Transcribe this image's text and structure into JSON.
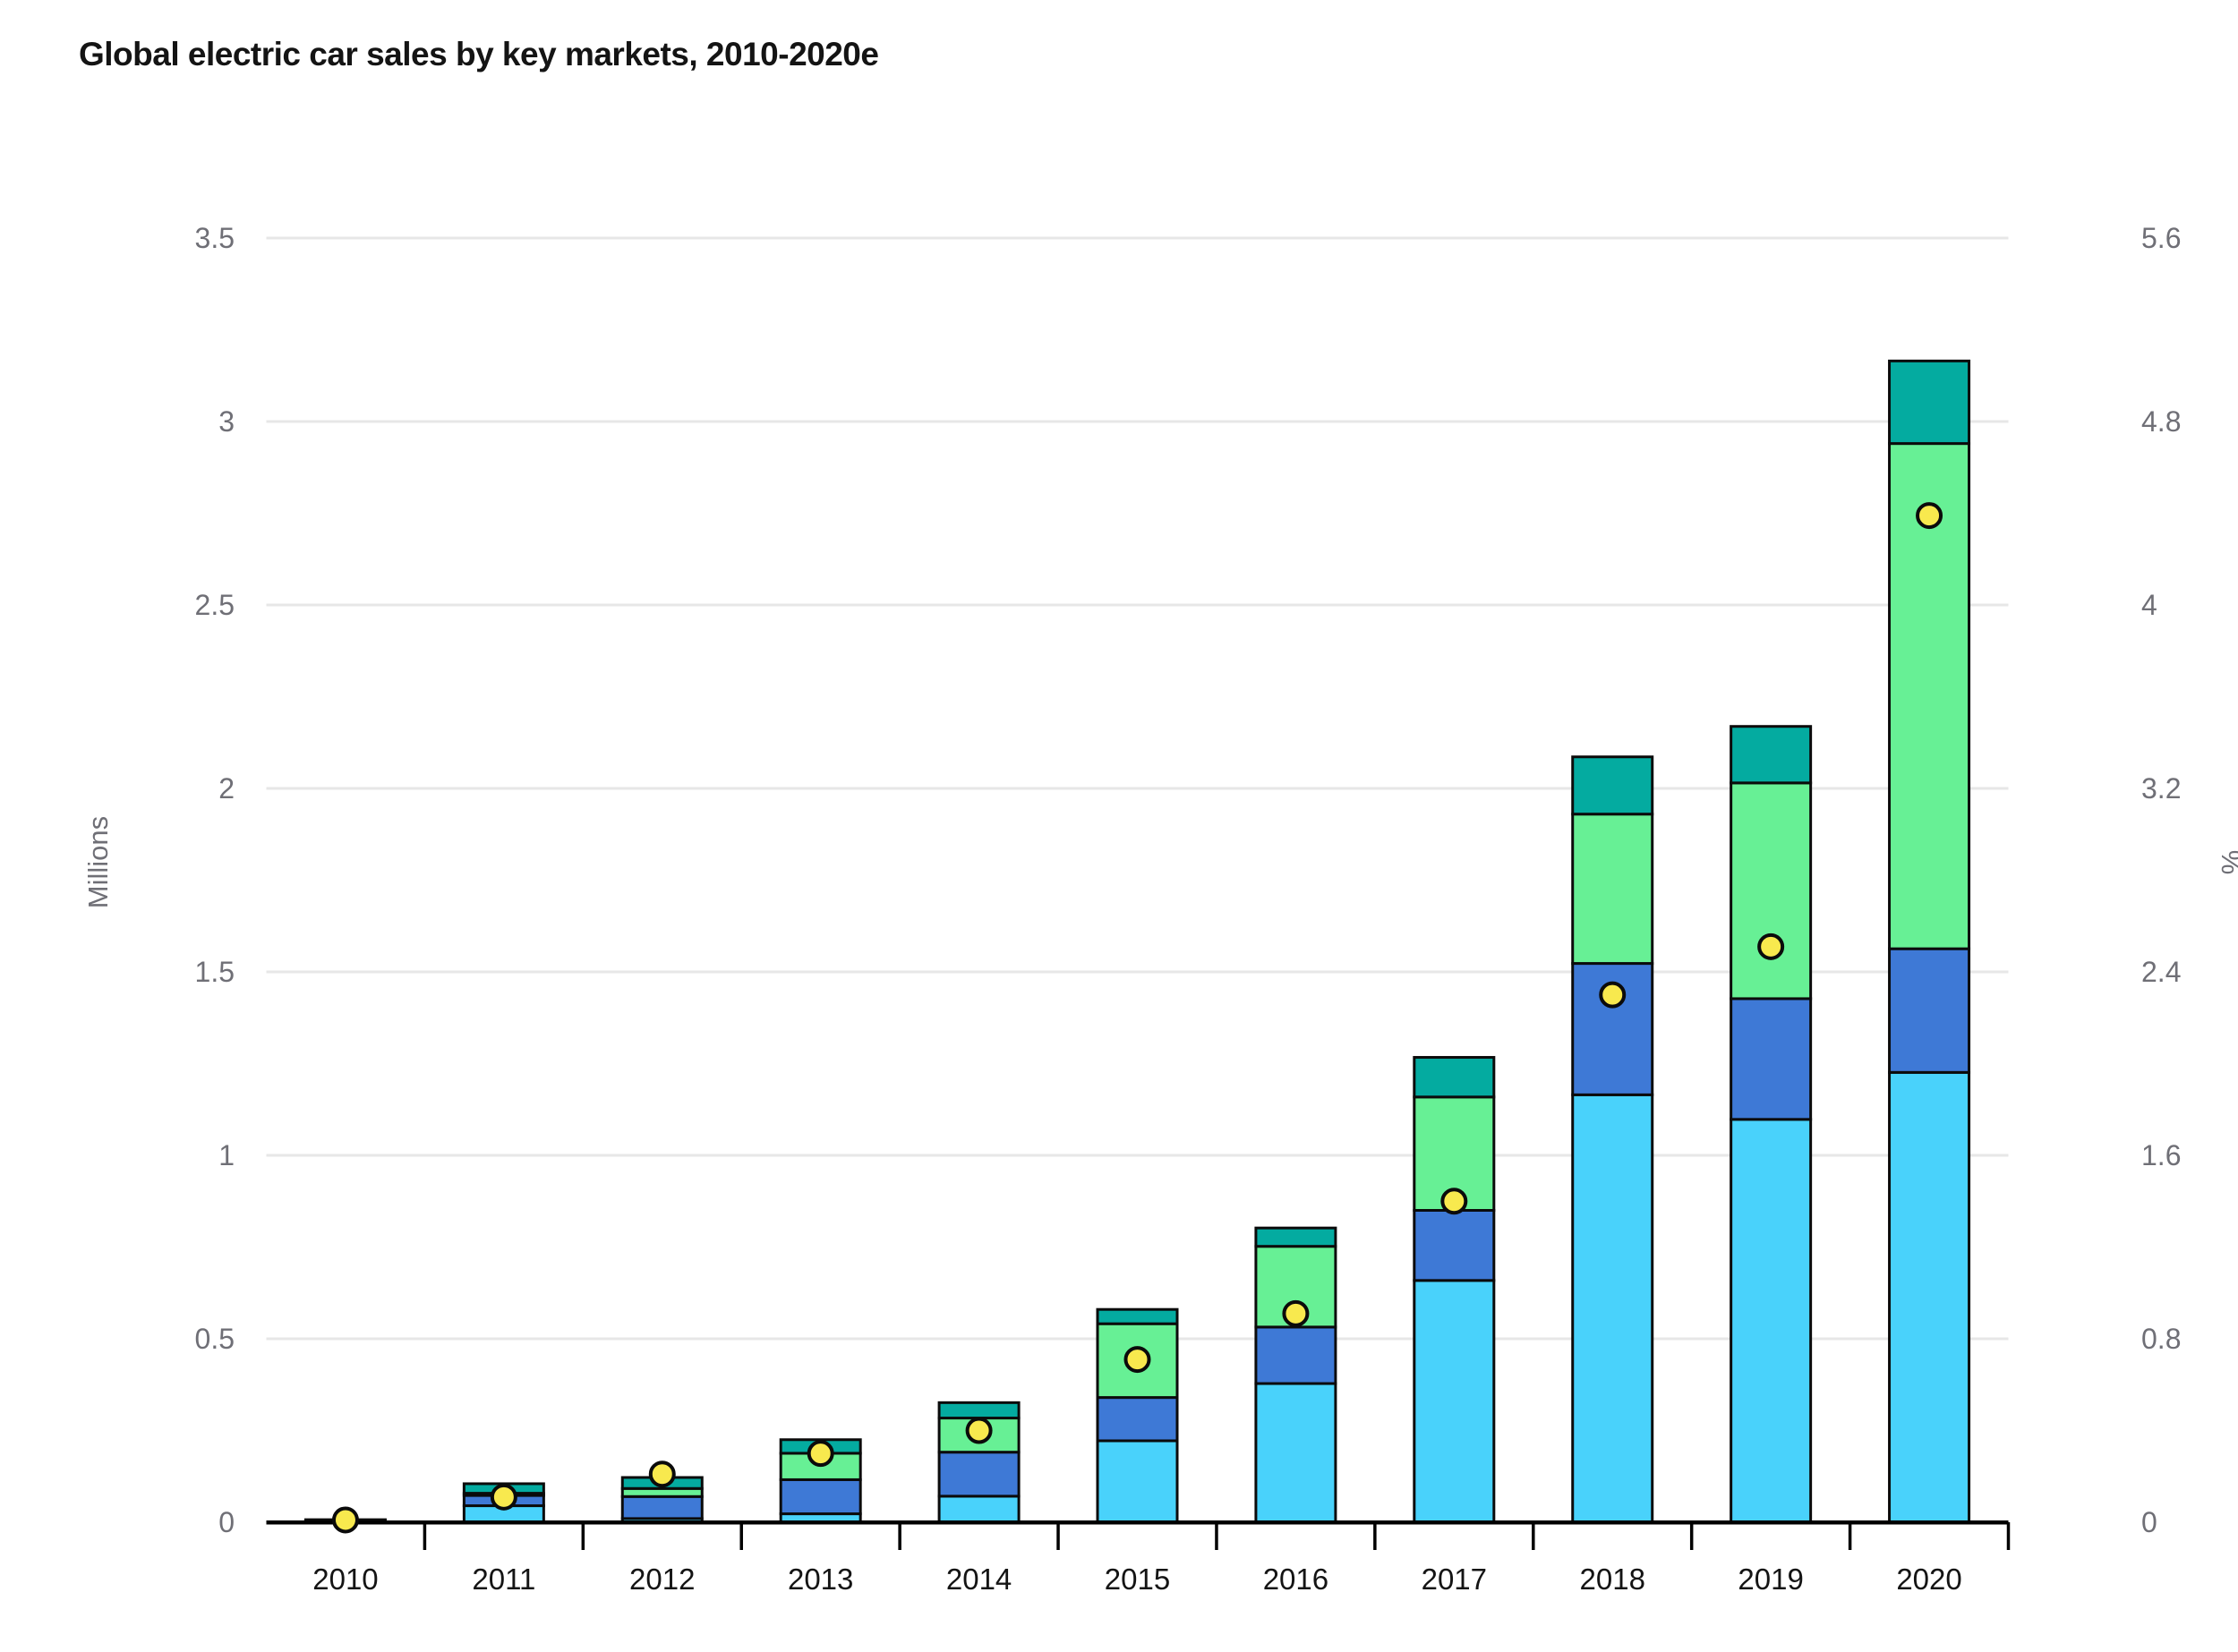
{
  "title": "Global electric car sales by key markets, 2010-2020e",
  "left_axis": {
    "label": "Millions",
    "ticks": [
      "0",
      "0.5",
      "1",
      "1.5",
      "2",
      "2.5",
      "3",
      "3.5"
    ],
    "min": 0,
    "max": 3.5
  },
  "right_axis": {
    "label": "%",
    "ticks": [
      "0",
      "0.8",
      "1.6",
      "2.4",
      "3.2",
      "4",
      "4.8",
      "5.6"
    ],
    "min": 0,
    "max": 5.6
  },
  "colors": {
    "light_blue": "#49D2FB",
    "blue": "#3E79D6",
    "green": "#67F095",
    "teal": "#04ABA0",
    "dot_yellow": "#F8E94E",
    "outline": "#0B0B0B",
    "gridline": "#E7E7E7",
    "axis_label_gray": "#6F6F76",
    "year_label": "#141414"
  },
  "chart_data": {
    "type": "bar",
    "stacked": true,
    "title": "Global electric car sales by key markets, 2010-2020e",
    "xlabel": "",
    "ylabel_left": "Millions",
    "ylabel_right": "%",
    "ylim_left": [
      0,
      3.5
    ],
    "ylim_right": [
      0,
      5.6
    ],
    "grid": true,
    "legend": "none",
    "categories": [
      "2010",
      "2011",
      "2012",
      "2013",
      "2014",
      "2015",
      "2016",
      "2017",
      "2018",
      "2019",
      "2020"
    ],
    "series": [
      {
        "name": "light-blue-segment",
        "color": "#49D2FB",
        "axis": "left",
        "unit": "millions",
        "values": [
          0.002,
          0.045,
          0.01,
          0.023,
          0.071,
          0.222,
          0.378,
          0.659,
          1.165,
          1.098,
          1.226
        ]
      },
      {
        "name": "blue-segment",
        "color": "#3E79D6",
        "axis": "left",
        "unit": "millions",
        "values": [
          0.002,
          0.028,
          0.06,
          0.093,
          0.12,
          0.118,
          0.154,
          0.191,
          0.358,
          0.329,
          0.337
        ]
      },
      {
        "name": "green-segment",
        "color": "#67F095",
        "axis": "left",
        "unit": "millions",
        "values": [
          0.001,
          0.006,
          0.022,
          0.072,
          0.093,
          0.201,
          0.22,
          0.309,
          0.407,
          0.588,
          1.377
        ]
      },
      {
        "name": "teal-segment",
        "color": "#04ABA0",
        "axis": "left",
        "unit": "millions",
        "values": [
          0.002,
          0.026,
          0.03,
          0.037,
          0.042,
          0.039,
          0.05,
          0.108,
          0.156,
          0.154,
          0.225
        ]
      }
    ],
    "totals_millions": [
      0.007,
      0.105,
      0.122,
      0.225,
      0.326,
      0.58,
      0.802,
      1.267,
      2.086,
      2.169,
      3.165
    ],
    "dot_series": {
      "name": "yellow-dot-share",
      "type": "scatter",
      "color": "#F8E94E",
      "axis": "right",
      "unit": "percent",
      "values": [
        0.01,
        0.11,
        0.21,
        0.3,
        0.4,
        0.71,
        0.91,
        1.4,
        2.3,
        2.51,
        4.39
      ]
    }
  }
}
